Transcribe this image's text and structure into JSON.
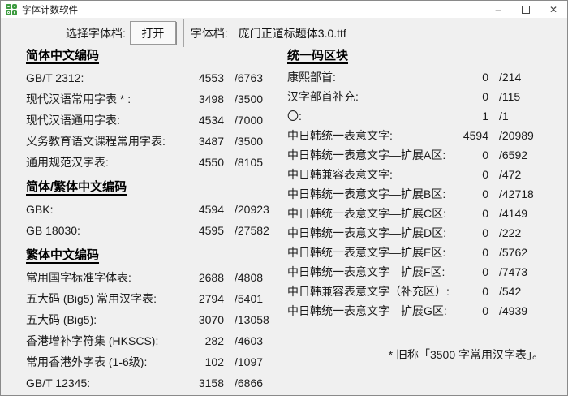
{
  "window": {
    "title": "字体计数软件",
    "controls": {
      "minimize": "–",
      "close": "✕"
    }
  },
  "toolbar": {
    "select_label": "选择字体档:",
    "open_button": "打开",
    "file_label": "字体档:",
    "file_name": "庞门正道标题体3.0.ttf"
  },
  "left_sections": [
    {
      "heading": "简体中文编码",
      "rows": [
        {
          "label": "GB/T 2312:",
          "value": "4553",
          "total": "/6763"
        },
        {
          "label": "现代汉语常用字表 * :",
          "value": "3498",
          "total": "/3500"
        },
        {
          "label": "现代汉语通用字表:",
          "value": "4534",
          "total": "/7000"
        },
        {
          "label": "义务教育语文课程常用字表:",
          "value": "3487",
          "total": "/3500"
        },
        {
          "label": "通用规范汉字表:",
          "value": "4550",
          "total": "/8105"
        }
      ]
    },
    {
      "heading": "简体/繁体中文编码",
      "rows": [
        {
          "label": "GBK:",
          "value": "4594",
          "total": "/20923"
        },
        {
          "label": "GB 18030:",
          "value": "4595",
          "total": "/27582"
        }
      ]
    },
    {
      "heading": "繁体中文编码",
      "rows": [
        {
          "label": "常用国字标准字体表:",
          "value": "2688",
          "total": "/4808"
        },
        {
          "label": "五大码 (Big5) 常用汉字表:",
          "value": "2794",
          "total": "/5401"
        },
        {
          "label": "五大码 (Big5):",
          "value": "3070",
          "total": "/13058"
        },
        {
          "label": "香港增补字符集 (HKSCS):",
          "value": "282",
          "total": "/4603"
        },
        {
          "label": "常用香港外字表 (1-6级):",
          "value": "102",
          "total": "/1097"
        },
        {
          "label": "GB/T 12345:",
          "value": "3158",
          "total": "/6866"
        }
      ]
    }
  ],
  "right_sections": [
    {
      "heading": "统一码区块",
      "rows": [
        {
          "label": "康熙部首:",
          "value": "0",
          "total": "/214"
        },
        {
          "label": "汉字部首补充:",
          "value": "0",
          "total": "/115"
        },
        {
          "label": "〇:",
          "value": "1",
          "total": "/1"
        },
        {
          "label": "中日韩统一表意文字:",
          "value": "4594",
          "total": "/20989"
        },
        {
          "label": "中日韩统一表意文字—扩展A区:",
          "value": "0",
          "total": "/6592"
        },
        {
          "label": "中日韩兼容表意文字:",
          "value": "0",
          "total": "/472"
        },
        {
          "label": "中日韩统一表意文字—扩展B区:",
          "value": "0",
          "total": "/42718"
        },
        {
          "label": "中日韩统一表意文字—扩展C区:",
          "value": "0",
          "total": "/4149"
        },
        {
          "label": "中日韩统一表意文字—扩展D区:",
          "value": "0",
          "total": "/222"
        },
        {
          "label": "中日韩统一表意文字—扩展E区:",
          "value": "0",
          "total": "/5762"
        },
        {
          "label": "中日韩统一表意文字—扩展F区:",
          "value": "0",
          "total": "/7473"
        },
        {
          "label": "中日韩兼容表意文字（补充区）:",
          "value": "0",
          "total": "/542"
        },
        {
          "label": "中日韩统一表意文字—扩展G区:",
          "value": "0",
          "total": "/4939"
        }
      ]
    }
  ],
  "footnote": "* 旧称「3500 字常用汉字表」。",
  "colors": {
    "icon_green": "#3d9b40",
    "titlebar_bg": "#ffffff",
    "client_bg": "#f0f0f0"
  }
}
